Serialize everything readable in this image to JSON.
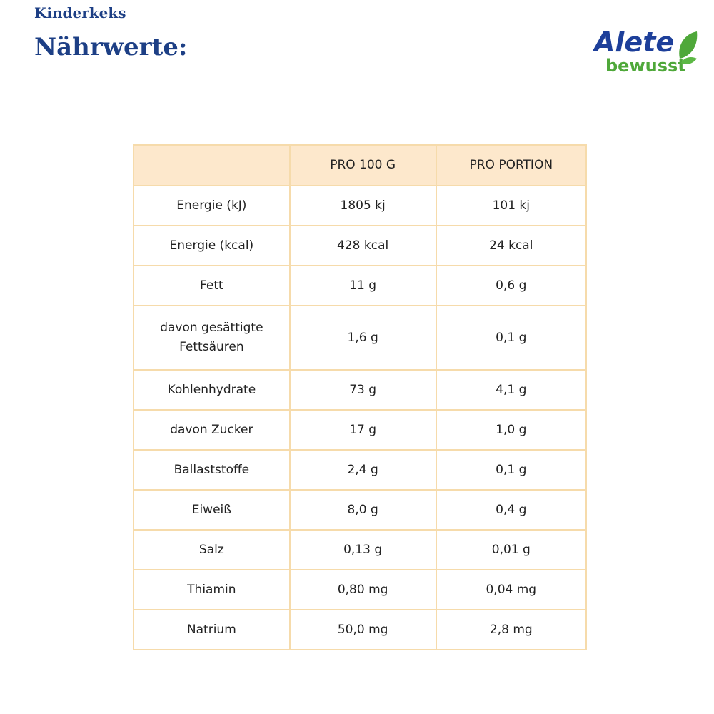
{
  "header": {
    "subtitle": "Kinderkeks",
    "title": "Nährwerte:"
  },
  "logo": {
    "brand": "Alete",
    "sub": "bewusst",
    "colors": {
      "blue": "#1d3f9a",
      "green": "#4fa83a"
    }
  },
  "colors": {
    "title": "#1d3f85",
    "border": "#f6dbab",
    "header_bg": "#fde8cc"
  },
  "table": {
    "columns": [
      "",
      "PRO 100 G",
      "PRO PORTION"
    ],
    "rows": [
      [
        "Energie (kJ)",
        "1805 kj",
        "101 kj"
      ],
      [
        "Energie (kcal)",
        "428 kcal",
        "24 kcal"
      ],
      [
        "Fett",
        "11 g",
        "0,6 g"
      ],
      [
        "davon gesättigte Fettsäuren",
        "1,6 g",
        "0,1 g"
      ],
      [
        "Kohlenhydrate",
        "73 g",
        "4,1 g"
      ],
      [
        "davon Zucker",
        "17 g",
        "1,0 g"
      ],
      [
        "Ballaststoffe",
        "2,4 g",
        "0,1 g"
      ],
      [
        "Eiweiß",
        "8,0 g",
        "0,4 g"
      ],
      [
        "Salz",
        "0,13 g",
        "0,01 g"
      ],
      [
        "Thiamin",
        "0,80 mg",
        "0,04 mg"
      ],
      [
        "Natrium",
        "50,0 mg",
        "2,8 mg"
      ]
    ]
  }
}
